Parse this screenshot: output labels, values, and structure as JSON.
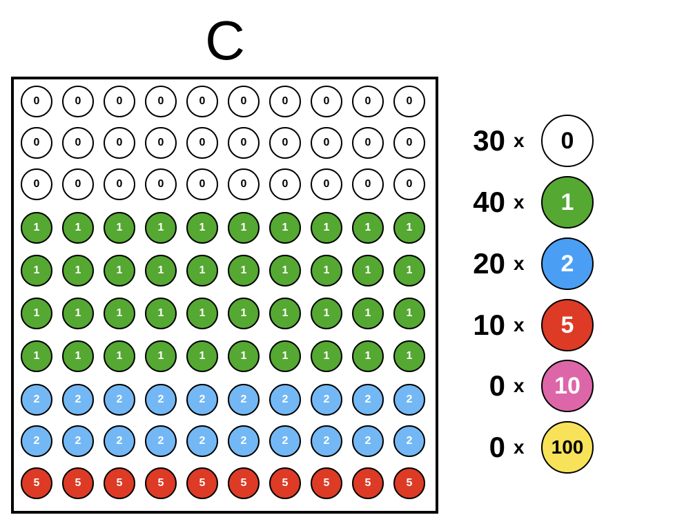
{
  "title": "C",
  "balls": {
    "0": {
      "fill": "#ffffff",
      "text_color": "#000000"
    },
    "1": {
      "fill": "#55a832",
      "text_color": "#ffffff"
    },
    "2": {
      "fill": "#4a9ff5",
      "text_color": "#ffffff"
    },
    "5": {
      "fill": "#dd3b26",
      "text_color": "#ffffff"
    },
    "10": {
      "fill": "#dd66a8",
      "text_color": "#ffffff"
    },
    "100": {
      "fill": "#f7e25a",
      "text_color": "#000000"
    }
  },
  "grid_rows": [
    [
      "0",
      "0",
      "0",
      "0",
      "0",
      "0",
      "0",
      "0",
      "0",
      "0"
    ],
    [
      "0",
      "0",
      "0",
      "0",
      "0",
      "0",
      "0",
      "0",
      "0",
      "0"
    ],
    [
      "0",
      "0",
      "0",
      "0",
      "0",
      "0",
      "0",
      "0",
      "0",
      "0"
    ],
    [
      "1",
      "1",
      "1",
      "1",
      "1",
      "1",
      "1",
      "1",
      "1",
      "1"
    ],
    [
      "1",
      "1",
      "1",
      "1",
      "1",
      "1",
      "1",
      "1",
      "1",
      "1"
    ],
    [
      "1",
      "1",
      "1",
      "1",
      "1",
      "1",
      "1",
      "1",
      "1",
      "1"
    ],
    [
      "1",
      "1",
      "1",
      "1",
      "1",
      "1",
      "1",
      "1",
      "1",
      "1"
    ],
    [
      "2",
      "2",
      "2",
      "2",
      "2",
      "2",
      "2",
      "2",
      "2",
      "2"
    ],
    [
      "2",
      "2",
      "2",
      "2",
      "2",
      "2",
      "2",
      "2",
      "2",
      "2"
    ],
    [
      "5",
      "5",
      "5",
      "5",
      "5",
      "5",
      "5",
      "5",
      "5",
      "5"
    ]
  ],
  "grid_fill_override": {
    "2": "#73b8f5"
  },
  "legend": [
    {
      "count": "30",
      "times": "x",
      "value": "0"
    },
    {
      "count": "40",
      "times": "x",
      "value": "1"
    },
    {
      "count": "20",
      "times": "x",
      "value": "2"
    },
    {
      "count": "10",
      "times": "x",
      "value": "5"
    },
    {
      "count": "0",
      "times": "x",
      "value": "10"
    },
    {
      "count": "0",
      "times": "x",
      "value": "100"
    }
  ]
}
